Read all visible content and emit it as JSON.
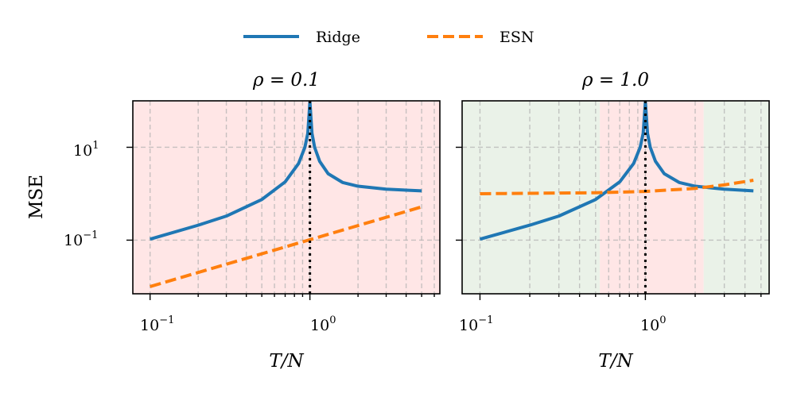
{
  "chart_data": [
    {
      "type": "line",
      "title": "ρ = 0.1",
      "xscale": "log",
      "yscale": "log",
      "xlim": [
        0.078,
        6.5
      ],
      "ylim": [
        0.007,
        100
      ],
      "xlabel": "T/N",
      "ylabel": "MSE",
      "xtick_labels": [
        "10^-1",
        "10^0"
      ],
      "ytick_labels": [
        "10^1",
        "10^-1"
      ],
      "vline": 1.0,
      "shaded_regions": [
        {
          "from": 0.078,
          "to": 6.5,
          "color": "#ffe6e6"
        }
      ],
      "series": [
        {
          "name": "Ridge",
          "color": "#1f77b4",
          "style": "solid",
          "x": [
            0.1,
            0.2,
            0.3,
            0.5,
            0.7,
            0.85,
            0.93,
            0.97,
            1.0,
            1.03,
            1.07,
            1.15,
            1.3,
            1.6,
            2.0,
            3.0,
            5.0
          ],
          "y": [
            0.105,
            0.21,
            0.33,
            0.75,
            1.8,
            4.5,
            10,
            20,
            95,
            20,
            10,
            5.0,
            2.7,
            1.75,
            1.45,
            1.25,
            1.15
          ]
        },
        {
          "name": "ESN",
          "color": "#ff7f0e",
          "style": "dashed",
          "x": [
            0.1,
            5.0
          ],
          "y": [
            0.01,
            0.52
          ]
        }
      ]
    },
    {
      "type": "line",
      "title": "ρ = 1.0",
      "xscale": "log",
      "yscale": "log",
      "xlim": [
        0.078,
        5.6
      ],
      "ylim": [
        0.007,
        100
      ],
      "xlabel": "T/N",
      "ylabel": "",
      "xtick_labels": [
        "10^-1",
        "10^0"
      ],
      "vline": 1.0,
      "shaded_regions": [
        {
          "from": 0.078,
          "to": 0.53,
          "color": "#eaf2e8"
        },
        {
          "from": 0.53,
          "to": 2.25,
          "color": "#ffe6e6"
        },
        {
          "from": 2.25,
          "to": 5.6,
          "color": "#eaf2e8"
        }
      ],
      "series": [
        {
          "name": "Ridge",
          "color": "#1f77b4",
          "style": "solid",
          "x": [
            0.1,
            0.2,
            0.3,
            0.5,
            0.7,
            0.85,
            0.93,
            0.97,
            1.0,
            1.03,
            1.07,
            1.15,
            1.3,
            1.6,
            2.0,
            3.0,
            4.5
          ],
          "y": [
            0.105,
            0.21,
            0.33,
            0.75,
            1.8,
            4.5,
            10,
            20,
            95,
            20,
            10,
            5.0,
            2.7,
            1.75,
            1.45,
            1.25,
            1.15
          ]
        },
        {
          "name": "ESN",
          "color": "#ff7f0e",
          "style": "dashed",
          "x": [
            0.1,
            0.5,
            1.0,
            2.0,
            3.0,
            4.5
          ],
          "y": [
            1.0,
            1.05,
            1.12,
            1.3,
            1.55,
            1.95
          ]
        }
      ]
    }
  ],
  "legend": {
    "placement": "top-center",
    "items": [
      {
        "label": "Ridge",
        "color": "#1f77b4",
        "style": "solid"
      },
      {
        "label": "ESN",
        "color": "#ff7f0e",
        "style": "dashed"
      }
    ]
  }
}
